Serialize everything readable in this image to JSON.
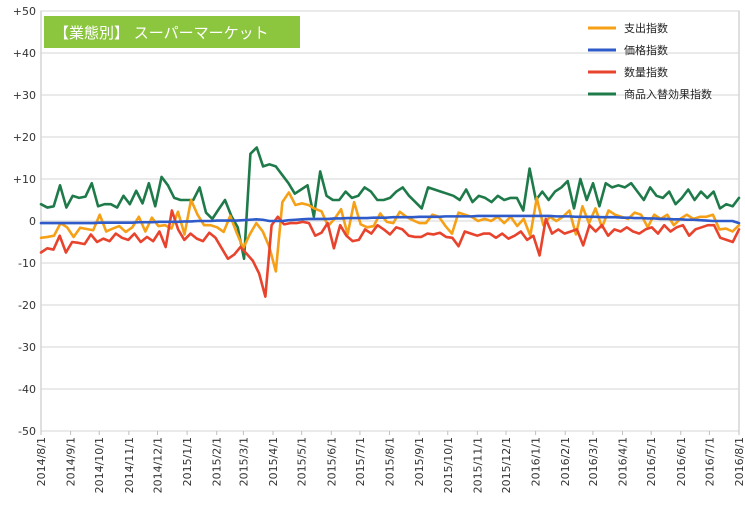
{
  "chart_data": {
    "type": "line",
    "title": "【業態別】 スーパーマーケット",
    "title_bg": "#8cc63f",
    "xlabel": "",
    "ylabel": "",
    "ylim": [
      -50,
      50
    ],
    "yticks": [
      "+50",
      "+40",
      "+30",
      "+20",
      "+10",
      "0",
      "-10",
      "-20",
      "-30",
      "-40",
      "-50"
    ],
    "ytick_values": [
      50,
      40,
      30,
      20,
      10,
      0,
      -10,
      -20,
      -30,
      -40,
      -50
    ],
    "x_tick_labels": [
      "2014/8/1",
      "2014/9/1",
      "2014/10/1",
      "2014/11/1",
      "2014/12/1",
      "2015/1/1",
      "2015/2/1",
      "2015/3/1",
      "2015/4/1",
      "2015/5/1",
      "2015/6/1",
      "2015/7/1",
      "2015/8/1",
      "2015/9/1",
      "2015/10/1",
      "2015/11/1",
      "2015/12/1",
      "2016/1/1",
      "2016/2/1",
      "2016/3/1",
      "2016/4/1",
      "2016/5/1",
      "2016/6/1",
      "2016/7/1",
      "2016/8/1"
    ],
    "x_start": "2014/8/1",
    "x_end": "2016/8/1",
    "grid": true,
    "legend_position": "top-right",
    "series": [
      {
        "name": "支出指数",
        "color": "#f5a016",
        "values": [
          -4.0,
          -3.8,
          -3.5,
          -0.5,
          -1.5,
          -3.8,
          -1.6,
          -1.9,
          -2.2,
          1.5,
          -2.5,
          -1.8,
          -1.2,
          -2.6,
          -1.5,
          1.0,
          -2.5,
          0.8,
          -1.2,
          -1.0,
          -1.8,
          2.2,
          -3.2,
          5.0,
          1.5,
          -1.0,
          -1.0,
          -1.5,
          -2.6,
          1.2,
          -2.8,
          -6.5,
          -3.2,
          -0.5,
          -2.5,
          -6.2,
          -12.0,
          4.5,
          6.8,
          3.8,
          4.2,
          3.8,
          2.9,
          2.3,
          -1.2,
          0.5,
          2.8,
          -3.2,
          4.5,
          -0.8,
          -1.5,
          -1.2,
          1.8,
          -0.2,
          -0.5,
          2.2,
          1.0,
          0.2,
          -0.5,
          -0.5,
          1.5,
          1.0,
          -1.2,
          -3.0,
          2.0,
          1.5,
          1.0,
          0.0,
          0.5,
          0.0,
          1.0,
          -0.5,
          1.0,
          -1.2,
          0.5,
          -3.5,
          5.5,
          -1.0,
          1.0,
          0.0,
          1.0,
          2.5,
          -3.2,
          3.5,
          -0.5,
          3.0,
          -1.5,
          2.5,
          1.5,
          1.0,
          0.5,
          2.0,
          1.5,
          -1.5,
          1.5,
          0.5,
          1.5,
          -1.0,
          0.5,
          1.5,
          0.5,
          1.0,
          1.0,
          1.5,
          -2.0,
          -1.8,
          -2.5,
          -1.0
        ]
      },
      {
        "name": "価格指数",
        "color": "#2e5bc9",
        "values": [
          -0.5,
          -0.5,
          -0.5,
          -0.5,
          -0.5,
          -0.5,
          -0.5,
          -0.5,
          -0.5,
          -0.4,
          -0.4,
          -0.4,
          -0.4,
          -0.4,
          -0.4,
          -0.3,
          -0.3,
          -0.3,
          -0.2,
          -0.2,
          -0.2,
          -0.2,
          -0.1,
          -0.1,
          0.0,
          0.0,
          0.0,
          0.1,
          0.1,
          0.1,
          0.1,
          0.2,
          0.3,
          0.4,
          0.3,
          0.0,
          0.0,
          0.0,
          0.2,
          0.3,
          0.4,
          0.5,
          0.5,
          0.5,
          0.5,
          0.6,
          0.6,
          0.7,
          0.7,
          0.7,
          0.7,
          0.8,
          0.8,
          0.8,
          0.9,
          0.9,
          0.9,
          0.9,
          1.0,
          1.0,
          1.0,
          1.0,
          1.1,
          1.1,
          1.1,
          1.1,
          1.1,
          1.2,
          1.2,
          1.2,
          1.2,
          1.2,
          1.2,
          1.2,
          1.2,
          1.2,
          1.2,
          1.2,
          1.2,
          1.1,
          1.1,
          1.1,
          1.0,
          1.0,
          1.0,
          1.0,
          0.9,
          0.9,
          0.9,
          0.8,
          0.8,
          0.7,
          0.7,
          0.6,
          0.6,
          0.5,
          0.5,
          0.4,
          0.4,
          0.3,
          0.3,
          0.2,
          0.1,
          0.0,
          0.0,
          0.0,
          0.0,
          -0.5
        ]
      },
      {
        "name": "数量指数",
        "color": "#e8432d",
        "values": [
          -7.5,
          -6.5,
          -6.8,
          -3.5,
          -7.5,
          -5.0,
          -5.2,
          -5.5,
          -3.2,
          -5.0,
          -4.2,
          -4.8,
          -3.0,
          -4.0,
          -4.5,
          -3.0,
          -5.0,
          -3.8,
          -4.8,
          -2.5,
          -6.2,
          2.5,
          -2.0,
          -4.5,
          -3.0,
          -4.2,
          -4.8,
          -2.8,
          -4.0,
          -6.5,
          -9.0,
          -8.0,
          -6.2,
          -7.8,
          -9.5,
          -12.5,
          -18.0,
          -1.0,
          1.0,
          -0.8,
          -0.5,
          -0.5,
          -0.2,
          -0.5,
          -3.5,
          -2.8,
          -0.5,
          -6.5,
          -1.0,
          -3.5,
          -4.8,
          -4.5,
          -2.0,
          -3.0,
          -1.0,
          -2.0,
          -3.2,
          -1.5,
          -2.0,
          -3.5,
          -3.8,
          -3.8,
          -3.0,
          -3.2,
          -2.8,
          -3.8,
          -4.0,
          -6.0,
          -2.5,
          -3.0,
          -3.5,
          -3.0,
          -3.0,
          -4.0,
          -3.0,
          -4.2,
          -3.5,
          -2.5,
          -4.5,
          -3.5,
          -8.2,
          0.5,
          -3.0,
          -2.0,
          -3.0,
          -2.5,
          -2.0,
          -5.8,
          -1.0,
          -2.5,
          -1.0,
          -3.5,
          -2.0,
          -2.5,
          -1.5,
          -2.5,
          -3.0,
          -2.0,
          -1.5,
          -3.0,
          -1.0,
          -2.5,
          -1.5,
          -1.0,
          -3.5,
          -2.0,
          -1.5,
          -1.0,
          -1.0,
          -4.0,
          -4.5,
          -5.0,
          -2.0
        ]
      },
      {
        "name": "商品入替効果指数",
        "color": "#1f7a4a",
        "values": [
          4.0,
          3.2,
          3.5,
          8.5,
          3.2,
          6.0,
          5.5,
          5.8,
          9.0,
          3.5,
          4.0,
          4.0,
          3.2,
          6.0,
          4.0,
          7.2,
          4.2,
          9.0,
          3.5,
          10.5,
          8.5,
          5.5,
          5.0,
          5.0,
          5.0,
          8.0,
          2.0,
          0.5,
          2.8,
          5.0,
          1.2,
          -1.5,
          -9.0,
          16.0,
          17.5,
          13.0,
          13.5,
          13.0,
          11.0,
          9.0,
          6.5,
          7.5,
          8.5,
          1.0,
          11.8,
          6.0,
          5.0,
          5.0,
          7.0,
          5.5,
          6.0,
          8.0,
          7.0,
          5.0,
          5.0,
          5.5,
          7.0,
          8.0,
          6.0,
          4.5,
          3.0,
          8.0,
          7.5,
          7.0,
          6.5,
          6.0,
          5.0,
          7.5,
          4.5,
          6.0,
          5.5,
          4.5,
          6.0,
          5.0,
          5.5,
          5.5,
          2.5,
          12.5,
          5.0,
          7.0,
          5.0,
          7.0,
          8.0,
          9.5,
          3.0,
          10.0,
          5.0,
          9.0,
          3.5,
          9.0,
          8.0,
          8.5,
          8.0,
          9.0,
          7.0,
          5.0,
          8.0,
          6.0,
          5.5,
          7.0,
          4.0,
          5.5,
          7.5,
          5.0,
          7.0,
          5.5,
          7.0,
          3.0,
          4.0,
          3.5,
          5.5
        ]
      }
    ]
  }
}
